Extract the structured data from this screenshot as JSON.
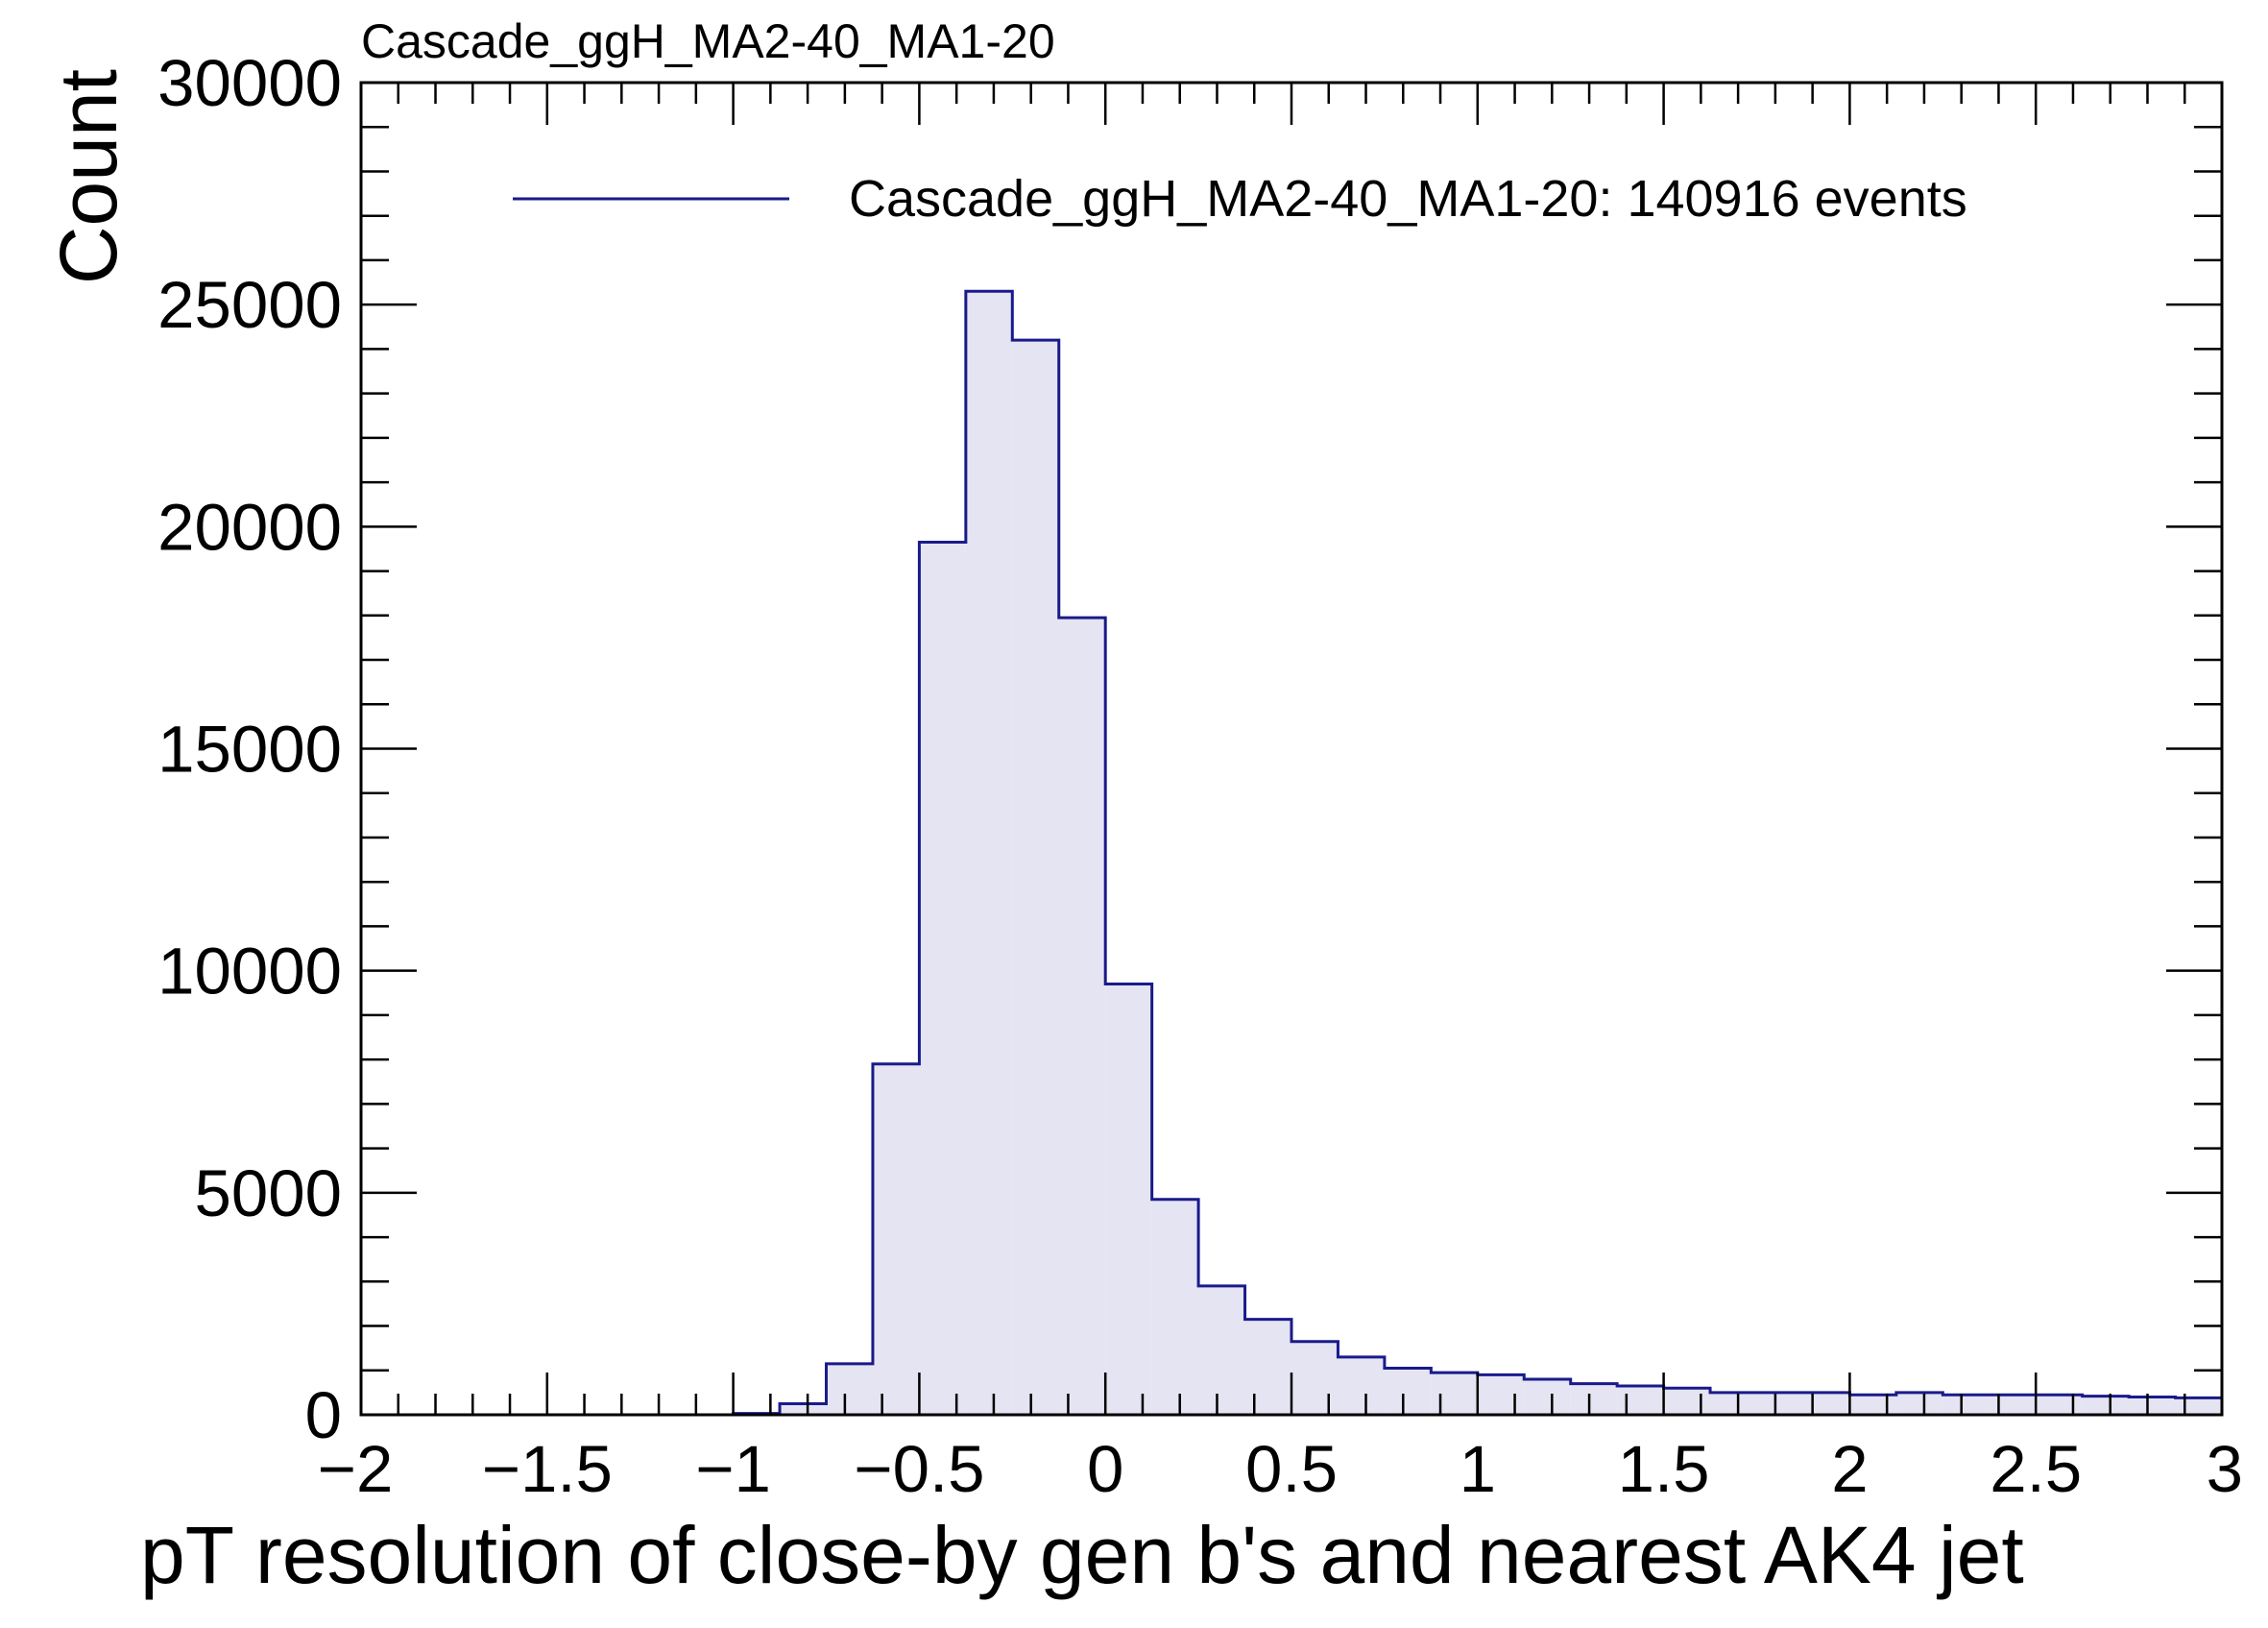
{
  "chart_data": {
    "type": "bar",
    "title": "Cascade_ggH_MA2-40_MA1-20",
    "xlabel": "pT resolution of close-by gen b's and nearest AK4 jet",
    "ylabel": "Count",
    "xlim": [
      -2,
      3
    ],
    "ylim": [
      0,
      30000
    ],
    "x_ticks": [
      "−2",
      "−1.5",
      "−1",
      "−0.5",
      "0",
      "0.5",
      "1",
      "1.5",
      "2",
      "2.5",
      "3"
    ],
    "x_tick_values": [
      -2,
      -1.5,
      -1,
      -0.5,
      0,
      0.5,
      1,
      1.5,
      2,
      2.5,
      3
    ],
    "y_ticks": [
      "0",
      "5000",
      "10000",
      "15000",
      "20000",
      "25000",
      "30000"
    ],
    "y_tick_values": [
      0,
      5000,
      10000,
      15000,
      20000,
      25000,
      30000
    ],
    "bin_edges": [
      -2.0,
      -1.875,
      -1.75,
      -1.625,
      -1.5,
      -1.375,
      -1.25,
      -1.125,
      -1.0,
      -0.875,
      -0.75,
      -0.625,
      -0.5,
      -0.375,
      -0.25,
      -0.125,
      0.0,
      0.125,
      0.25,
      0.375,
      0.5,
      0.625,
      0.75,
      0.875,
      1.0,
      1.125,
      1.25,
      1.375,
      1.5,
      1.625,
      1.75,
      1.875,
      2.0,
      2.125,
      2.25,
      2.375,
      2.5,
      2.625,
      2.75,
      2.875,
      3.0
    ],
    "series": [
      {
        "name": "Cascade_ggH_MA2-40_MA1-20: 140916 events",
        "values": [
          0,
          0,
          0,
          0,
          0,
          0,
          0,
          0,
          30,
          250,
          1150,
          7900,
          19650,
          25300,
          24200,
          17950,
          9700,
          4850,
          2900,
          2150,
          1650,
          1300,
          1050,
          950,
          900,
          800,
          700,
          650,
          600,
          500,
          500,
          500,
          450,
          500,
          450,
          450,
          450,
          420,
          400,
          380
        ]
      }
    ],
    "colors": {
      "line": "#1a1a8c",
      "fill": "#e4e4f2"
    },
    "legend": {
      "placement": "top-right",
      "label": "Cascade_ggH_MA2-40_MA1-20: 140916 events"
    },
    "grid": false
  }
}
